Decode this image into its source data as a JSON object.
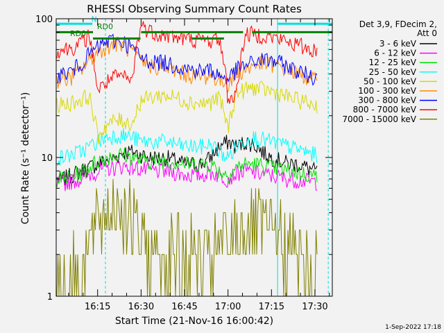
{
  "chart_data": {
    "type": "line",
    "title": "RHESSI Observing Summary Count Rates",
    "xlabel": "Start Time (21-Nov-16 16:00:42)",
    "ylabel": "Count Rate (s⁻¹ detector⁻¹)",
    "yscale": "log",
    "ylim": [
      1,
      100
    ],
    "xlim_min": [
      0.7,
      96.0
    ],
    "x_tick_labels": [
      "16:15",
      "16:30",
      "16:45",
      "17:00",
      "17:15",
      "17:30"
    ],
    "x_tick_minutes": [
      15,
      30,
      45,
      60,
      75,
      90
    ],
    "y_tick_labels": [
      "1",
      "10",
      "100"
    ],
    "y_tick_values": [
      1,
      10,
      100
    ],
    "legend_header": [
      "Det 3,9, FDecim 2,",
      "Att 0"
    ],
    "series": [
      {
        "name": "3 - 6 keV",
        "color": "#000000",
        "min": [
          3,
          6,
          9,
          12,
          15,
          18,
          21,
          24,
          27,
          30,
          33,
          36,
          39,
          42,
          45,
          48,
          51,
          54,
          57,
          60,
          63,
          66,
          69,
          72,
          75,
          78,
          81,
          84,
          87,
          90,
          93
        ],
        "values": [
          7,
          7.5,
          8,
          8.5,
          9,
          9.5,
          10,
          11,
          11,
          10.5,
          10,
          10,
          10,
          9.5,
          9,
          9,
          9,
          10,
          12,
          13,
          12,
          13,
          12.5,
          11,
          10,
          9.5,
          9,
          9,
          8.5,
          8,
          7.5
        ]
      },
      {
        "name": "6 - 12 keV",
        "color": "#ff00ff",
        "min": [
          3,
          6,
          9,
          12,
          15,
          18,
          21,
          24,
          27,
          30,
          33,
          36,
          39,
          42,
          45,
          48,
          51,
          54,
          57,
          60,
          63,
          66,
          69,
          72,
          75,
          78,
          81,
          84,
          87,
          90,
          93
        ],
        "values": [
          6.5,
          6.8,
          7,
          7.5,
          8,
          8.3,
          8.5,
          8.7,
          8.5,
          8.3,
          8,
          8,
          8,
          7.8,
          7.5,
          7.5,
          7.5,
          7.8,
          7.5,
          7,
          7.8,
          8,
          7.8,
          7.6,
          7.4,
          7.2,
          7,
          6.9,
          6.8,
          6.7,
          6.6
        ]
      },
      {
        "name": "12 - 25 keV",
        "color": "#00e000",
        "min": [
          3,
          6,
          9,
          12,
          15,
          18,
          21,
          24,
          27,
          30,
          33,
          36,
          39,
          42,
          45,
          48,
          51,
          54,
          57,
          60,
          63,
          66,
          69,
          72,
          75,
          78,
          81,
          84,
          87,
          90,
          93
        ],
        "values": [
          7,
          7.3,
          7.8,
          8.5,
          9.5,
          10,
          10.5,
          10.5,
          10,
          9.5,
          9.5,
          9.5,
          9.5,
          9.3,
          9,
          9,
          9,
          9,
          8,
          7.5,
          8.5,
          9,
          9,
          8.8,
          8.5,
          8.3,
          8,
          7.8,
          7.6,
          7.4,
          7.2
        ]
      },
      {
        "name": "25 - 50 keV",
        "color": "#00ffff",
        "min": [
          3,
          6,
          9,
          12,
          15,
          18,
          21,
          24,
          27,
          30,
          33,
          36,
          39,
          42,
          45,
          48,
          51,
          54,
          57,
          60,
          63,
          66,
          69,
          72,
          75,
          78,
          81,
          84,
          87,
          90,
          93
        ],
        "values": [
          10,
          10.5,
          11,
          12,
          13,
          14,
          14.5,
          14.5,
          14,
          13,
          13,
          13,
          13,
          12.5,
          12,
          12,
          12,
          12.5,
          11,
          10,
          12,
          13.5,
          14,
          13.5,
          13,
          12.5,
          12,
          11.5,
          11,
          10.5,
          10
        ]
      },
      {
        "name": "50 - 100 keV",
        "color": "#d8d800",
        "min": [
          3,
          6,
          9,
          12,
          15,
          18,
          21,
          24,
          27,
          30,
          33,
          36,
          39,
          42,
          45,
          48,
          51,
          54,
          57,
          60,
          63,
          66,
          69,
          72,
          75,
          78,
          81,
          84,
          87,
          90,
          93
        ],
        "values": [
          24,
          25,
          26,
          28,
          14,
          17,
          18.5,
          18.5,
          17.5,
          26,
          27,
          28,
          28,
          27,
          26,
          25,
          24.5,
          25,
          27,
          16,
          29,
          31,
          32,
          31,
          30,
          29,
          27,
          26,
          25,
          24,
          23.5
        ]
      },
      {
        "name": "100 - 300 keV",
        "color": "#ff8800",
        "min": [
          3,
          6,
          9,
          12,
          15,
          18,
          21,
          24,
          27,
          30,
          33,
          36,
          39,
          42,
          45,
          48,
          51,
          54,
          57,
          60,
          63,
          66,
          69,
          72,
          75,
          78,
          81,
          84,
          87,
          90,
          93
        ],
        "values": [
          36,
          38,
          42,
          50,
          57,
          63,
          66,
          64,
          58,
          48,
          46,
          45,
          44,
          42,
          40,
          39,
          38,
          39,
          36,
          34,
          40,
          43,
          46,
          48,
          47,
          45,
          43,
          40,
          38,
          36,
          34
        ]
      },
      {
        "name": "300 - 800 keV",
        "color": "#0000ff",
        "min": [
          3,
          6,
          9,
          12,
          15,
          18,
          21,
          24,
          27,
          30,
          33,
          36,
          39,
          42,
          45,
          48,
          51,
          54,
          57,
          60,
          63,
          66,
          69,
          72,
          75,
          78,
          81,
          84,
          87,
          90,
          93
        ],
        "values": [
          40,
          42,
          47,
          55,
          62,
          68,
          70,
          68,
          62,
          52,
          50,
          49,
          48,
          46,
          44,
          43,
          42,
          43,
          39,
          37,
          43,
          46,
          49,
          51,
          50,
          48,
          45,
          42,
          40,
          38,
          36
        ]
      },
      {
        "name": "800 - 7000 keV",
        "color": "#ff0000",
        "min": [
          3,
          6,
          9,
          12,
          15,
          18,
          21,
          24,
          27,
          30,
          33,
          36,
          39,
          42,
          45,
          48,
          51,
          54,
          57,
          60,
          63,
          66,
          69,
          72,
          75,
          78,
          81,
          84,
          87,
          90,
          93
        ],
        "values": [
          60,
          62,
          66,
          75,
          30,
          35,
          38,
          38,
          35,
          90,
          82,
          78,
          76,
          74,
          72,
          71,
          70,
          70,
          72,
          26,
          29,
          77,
          78,
          76,
          74,
          71,
          68,
          65,
          62,
          59,
          57
        ]
      },
      {
        "name": "7000 - 15000 keV",
        "color": "#808000",
        "min": [
          3,
          6,
          9,
          12,
          15,
          18,
          21,
          24,
          27,
          30,
          33,
          36,
          39,
          42,
          45,
          48,
          51,
          54,
          57,
          60,
          63,
          66,
          69,
          72,
          75,
          78,
          81,
          84,
          87,
          90,
          93
        ],
        "values": [
          1.5,
          1.5,
          1.7,
          2.2,
          3.2,
          4.2,
          4.8,
          4.5,
          3.5,
          2.4,
          2.2,
          2.1,
          2,
          2,
          1.9,
          1.9,
          1.8,
          1.9,
          2.2,
          2.6,
          2.8,
          3,
          3.1,
          3,
          2.8,
          2.5,
          2.2,
          2,
          1.8,
          1.6,
          1.5
        ]
      }
    ],
    "annotations": [
      {
        "text": "N",
        "color": "#00e0e0",
        "minute": 12.8,
        "value": 95
      },
      {
        "text": "RD0",
        "color": "#008000",
        "minute": 14.8,
        "value": 84
      },
      {
        "text": "RD0",
        "color": "#008000",
        "minute": 5.5,
        "value": 75
      }
    ],
    "flags": [
      {
        "name": "N",
        "color": "#00e0e0",
        "value": 92,
        "intervals": [
          [
            0.7,
            13.2
          ],
          [
            77.0,
            96.0
          ]
        ]
      },
      {
        "name": "RD0",
        "color": "#008000",
        "value": 80,
        "intervals": [
          [
            0.7,
            13.4
          ],
          [
            30.0,
            65.2
          ],
          [
            68.3,
            96.0
          ]
        ]
      },
      {
        "name": "RD0",
        "color": "#008000",
        "value": 72,
        "intervals": [
          [
            13.4,
            29.8
          ],
          [
            47.5,
            58.6
          ]
        ]
      }
    ],
    "vlines": [
      {
        "minute": 0.7,
        "color": "#00e0e0",
        "style": "solid"
      },
      {
        "minute": 17.7,
        "color": "#00e0e0",
        "style": "dashed"
      },
      {
        "minute": 77.1,
        "color": "#00e0e0",
        "style": "solid"
      },
      {
        "minute": 94.6,
        "color": "#00e0e0",
        "style": "dashed"
      }
    ],
    "footer": "1-Sep-2022 17:18"
  }
}
